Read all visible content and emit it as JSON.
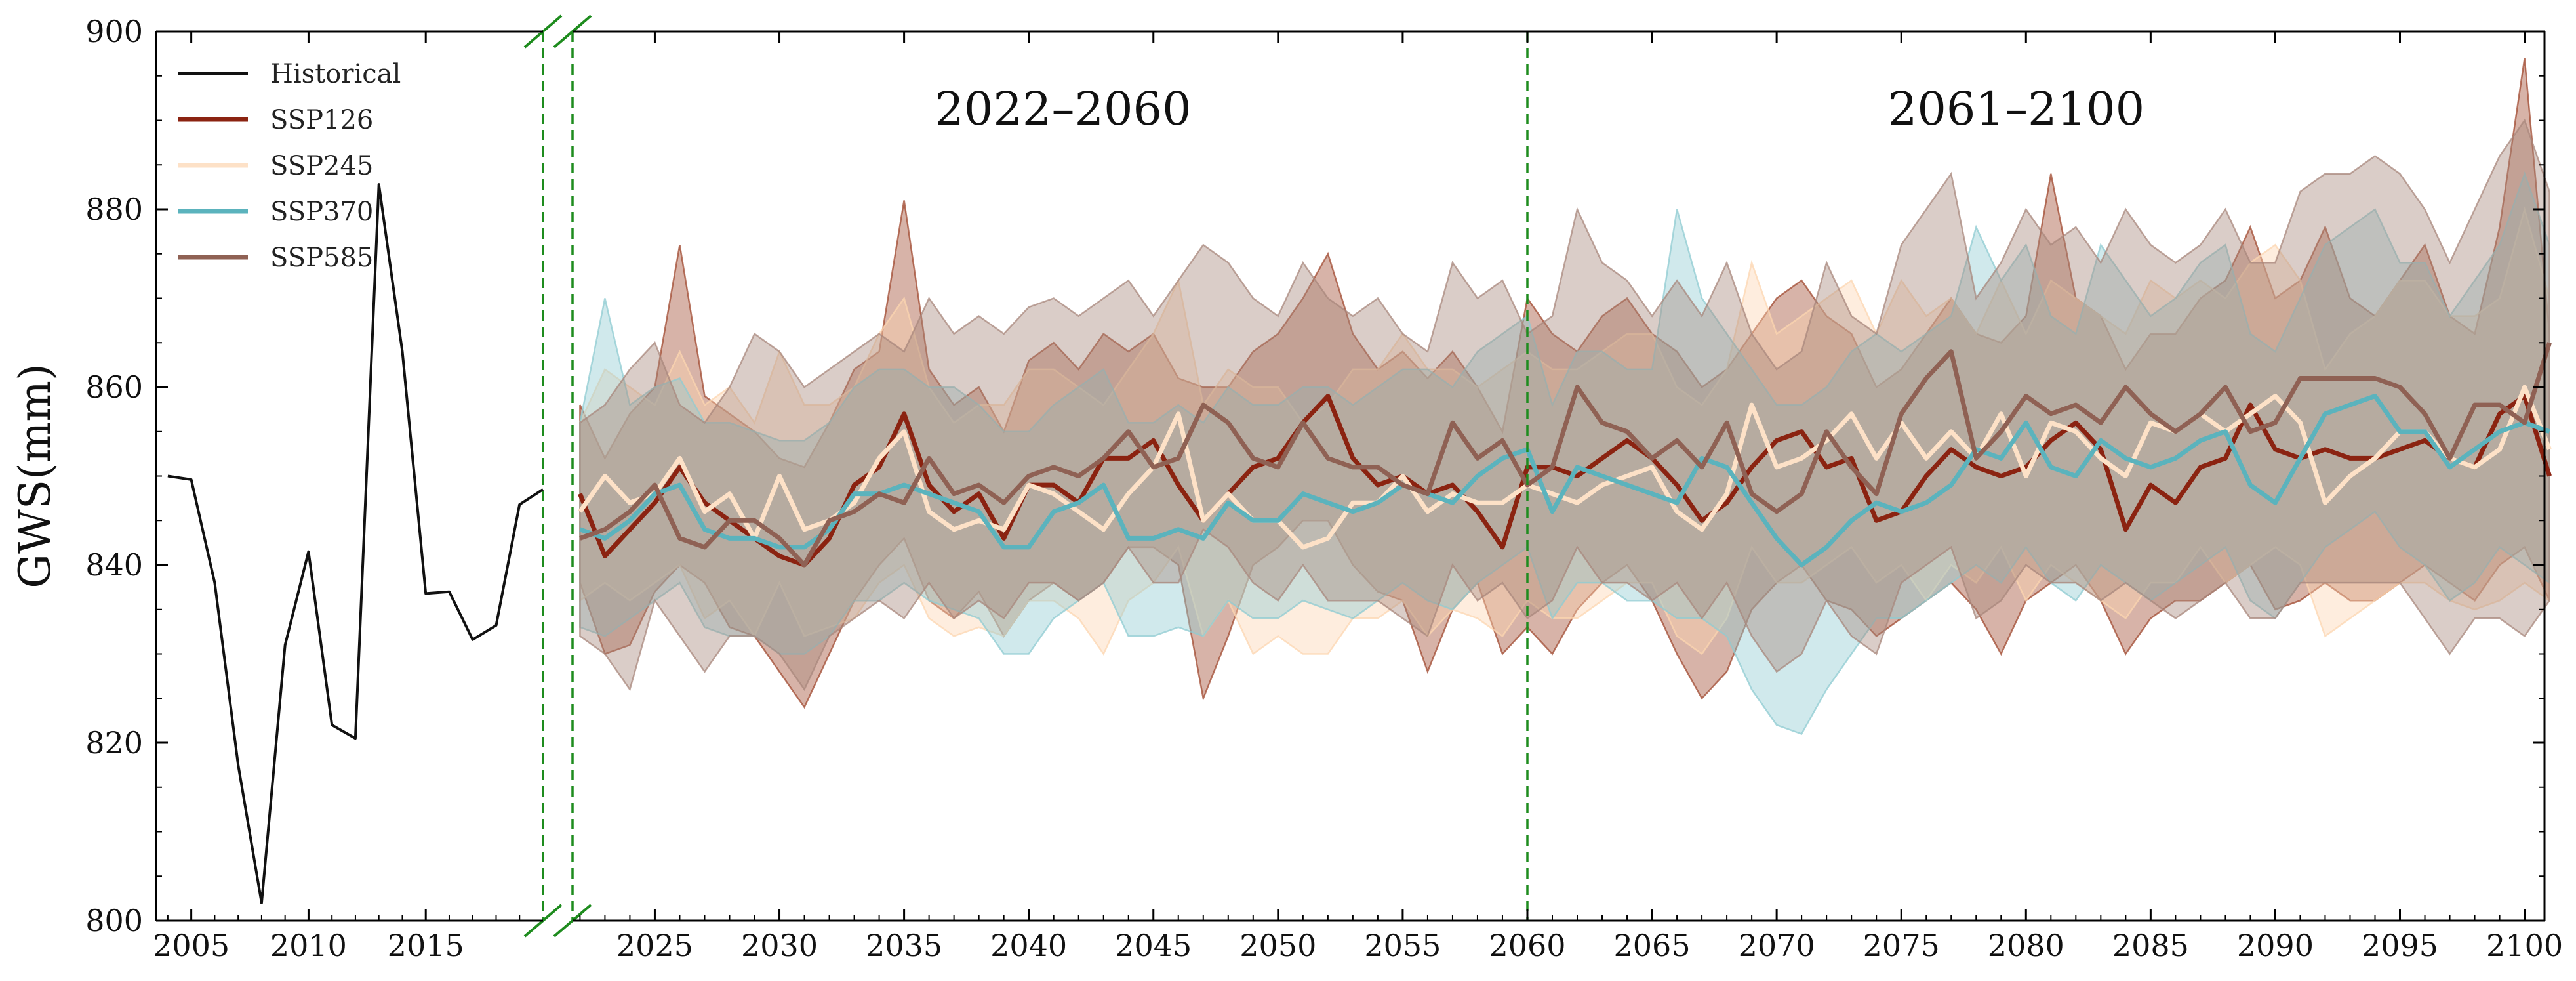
{
  "chart_data": {
    "type": "line",
    "ylabel": "GWS(mm)",
    "ylim": [
      800,
      900
    ],
    "y_ticks": [
      800,
      820,
      840,
      860,
      880,
      900
    ],
    "hist_xlim": [
      2003.5,
      2020
    ],
    "hist_ticks": [
      2005,
      2010,
      2015
    ],
    "proj_xlim": [
      2021.7,
      2100.8
    ],
    "proj_ticks": [
      2025,
      2030,
      2035,
      2040,
      2045,
      2050,
      2055,
      2060,
      2065,
      2070,
      2075,
      2080,
      2085,
      2090,
      2095,
      2100
    ],
    "period_divider_year": 2060,
    "periods": [
      "2022–2060",
      "2061–2100"
    ],
    "historical": {
      "name": "Historical",
      "color": "#111111",
      "x": [
        2004,
        2005,
        2006,
        2007,
        2008,
        2009,
        2010,
        2011,
        2012,
        2013,
        2014,
        2015,
        2016,
        2017,
        2018,
        2019,
        2020
      ],
      "values": [
        850,
        849.6,
        838,
        817.5,
        802,
        831,
        841.5,
        822,
        820.5,
        882.8,
        864,
        836.8,
        837,
        831.6,
        833.2,
        846.8,
        848.5
      ]
    },
    "series_start_year": 2022,
    "series": [
      {
        "name": "SSP126",
        "color": "#8b2311",
        "band_color": "#a04a30",
        "values": [
          848,
          841,
          844,
          847,
          851,
          847,
          845,
          843,
          841,
          840,
          843,
          849,
          851,
          857,
          849,
          846,
          848,
          843,
          849,
          849,
          847,
          852,
          852,
          854,
          849,
          845,
          848,
          851,
          852,
          856,
          859,
          852,
          849,
          850,
          848,
          849,
          846,
          842,
          851,
          851,
          850,
          852,
          854,
          852,
          849,
          845,
          847,
          851,
          854,
          855,
          851,
          852,
          845,
          846,
          850,
          853,
          851,
          850,
          851,
          854,
          856,
          853,
          844,
          849,
          847,
          851,
          852,
          858,
          853,
          852,
          853,
          852,
          852,
          853,
          854,
          852,
          851,
          857,
          859,
          850
        ],
        "lower": [
          838,
          830,
          831,
          837,
          840,
          838,
          833,
          832,
          828,
          824,
          830,
          836,
          840,
          843,
          836,
          834,
          837,
          832,
          836,
          838,
          836,
          838,
          842,
          842,
          840,
          825,
          832,
          840,
          842,
          845,
          845,
          840,
          837,
          836,
          828,
          835,
          838,
          830,
          833,
          830,
          835,
          838,
          840,
          836,
          830,
          825,
          828,
          835,
          838,
          840,
          836,
          835,
          832,
          834,
          836,
          838,
          835,
          830,
          836,
          838,
          840,
          836,
          830,
          834,
          836,
          836,
          838,
          840,
          835,
          836,
          838,
          836,
          836,
          838,
          840,
          838,
          836,
          840,
          842,
          836
        ],
        "upper": [
          858,
          852,
          857,
          860,
          876,
          859,
          857,
          855,
          852,
          851,
          856,
          862,
          864,
          881,
          862,
          858,
          860,
          855,
          863,
          865,
          862,
          866,
          864,
          866,
          861,
          860,
          860,
          864,
          866,
          870,
          875,
          866,
          862,
          864,
          861,
          864,
          860,
          855,
          870,
          866,
          864,
          868,
          870,
          866,
          864,
          860,
          862,
          866,
          870,
          872,
          868,
          866,
          860,
          862,
          866,
          870,
          866,
          865,
          868,
          884,
          870,
          868,
          862,
          866,
          866,
          870,
          872,
          878,
          870,
          872,
          878,
          870,
          868,
          872,
          876,
          868,
          866,
          878,
          897,
          866
        ]
      },
      {
        "name": "SSP245",
        "color": "#fde1c7",
        "band_color": "#fcd5b0",
        "values": [
          846,
          850,
          847,
          848,
          852,
          846,
          848,
          843,
          850,
          844,
          845,
          847,
          852,
          855,
          846,
          844,
          845,
          844,
          849,
          848,
          846,
          844,
          848,
          851,
          857,
          845,
          848,
          845,
          845,
          842,
          843,
          847,
          847,
          850,
          846,
          848,
          847,
          847,
          849,
          848,
          847,
          849,
          850,
          851,
          846,
          844,
          848,
          858,
          851,
          852,
          854,
          857,
          852,
          856,
          852,
          855,
          852,
          857,
          850,
          856,
          855,
          852,
          850,
          856,
          855,
          857,
          855,
          857,
          859,
          856,
          847,
          850,
          852,
          855,
          855,
          852,
          851,
          853,
          860,
          853
        ],
        "lower": [
          836,
          838,
          836,
          838,
          840,
          834,
          836,
          832,
          838,
          832,
          833,
          834,
          838,
          840,
          834,
          832,
          833,
          832,
          836,
          836,
          834,
          830,
          836,
          838,
          842,
          832,
          836,
          830,
          832,
          830,
          830,
          834,
          834,
          836,
          832,
          835,
          834,
          832,
          836,
          834,
          834,
          836,
          838,
          838,
          832,
          830,
          834,
          842,
          838,
          838,
          840,
          842,
          838,
          840,
          836,
          840,
          838,
          842,
          836,
          840,
          838,
          836,
          834,
          838,
          838,
          842,
          838,
          840,
          842,
          840,
          832,
          834,
          836,
          838,
          838,
          836,
          835,
          836,
          838,
          836
        ],
        "upper": [
          856,
          862,
          860,
          858,
          864,
          858,
          860,
          856,
          864,
          858,
          858,
          860,
          866,
          870,
          860,
          856,
          858,
          858,
          862,
          862,
          860,
          858,
          862,
          866,
          872,
          858,
          862,
          860,
          860,
          856,
          858,
          862,
          862,
          866,
          862,
          862,
          860,
          862,
          864,
          862,
          862,
          864,
          866,
          866,
          860,
          858,
          862,
          874,
          866,
          868,
          870,
          872,
          866,
          872,
          868,
          870,
          866,
          872,
          866,
          872,
          870,
          868,
          866,
          872,
          870,
          872,
          870,
          874,
          876,
          872,
          862,
          866,
          868,
          872,
          872,
          868,
          868,
          870,
          880,
          870
        ]
      },
      {
        "name": "SSP370",
        "color": "#5bb3bd",
        "band_color": "#8fcbd2",
        "values": [
          844,
          843,
          845,
          848,
          849,
          844,
          843,
          843,
          842,
          842,
          844,
          848,
          848,
          849,
          848,
          847,
          846,
          842,
          842,
          846,
          847,
          849,
          843,
          843,
          844,
          843,
          847,
          845,
          845,
          848,
          847,
          846,
          847,
          849,
          848,
          847,
          850,
          852,
          853,
          846,
          851,
          850,
          849,
          848,
          847,
          852,
          851,
          847,
          843,
          840,
          842,
          845,
          847,
          846,
          847,
          849,
          853,
          852,
          856,
          851,
          850,
          854,
          852,
          851,
          852,
          854,
          855,
          849,
          847,
          852,
          857,
          858,
          859,
          855,
          855,
          851,
          853,
          855,
          856,
          855
        ],
        "lower": [
          833,
          832,
          834,
          836,
          838,
          833,
          832,
          832,
          830,
          830,
          832,
          836,
          836,
          838,
          836,
          835,
          834,
          830,
          830,
          834,
          836,
          838,
          832,
          832,
          833,
          832,
          836,
          834,
          834,
          836,
          835,
          834,
          836,
          838,
          836,
          835,
          838,
          840,
          842,
          834,
          838,
          838,
          836,
          836,
          834,
          834,
          832,
          826,
          822,
          821,
          826,
          830,
          834,
          834,
          836,
          838,
          840,
          838,
          842,
          838,
          836,
          840,
          838,
          836,
          838,
          840,
          842,
          836,
          834,
          838,
          842,
          844,
          846,
          842,
          840,
          836,
          838,
          842,
          840,
          838
        ],
        "upper": [
          856,
          870,
          858,
          860,
          861,
          856,
          856,
          855,
          854,
          854,
          856,
          860,
          862,
          862,
          860,
          860,
          858,
          855,
          855,
          858,
          860,
          862,
          856,
          856,
          858,
          856,
          860,
          858,
          858,
          860,
          860,
          858,
          860,
          862,
          862,
          860,
          864,
          866,
          868,
          858,
          864,
          864,
          862,
          862,
          880,
          870,
          866,
          862,
          858,
          858,
          860,
          864,
          866,
          864,
          866,
          868,
          878,
          872,
          876,
          868,
          866,
          876,
          872,
          868,
          870,
          874,
          876,
          866,
          864,
          870,
          876,
          878,
          880,
          874,
          874,
          868,
          872,
          876,
          884,
          876
        ]
      },
      {
        "name": "SSP585",
        "color": "#8f6154",
        "band_color": "#a8877c",
        "values": [
          843,
          844,
          846,
          849,
          843,
          842,
          845,
          845,
          843,
          840,
          845,
          846,
          848,
          847,
          852,
          848,
          849,
          847,
          850,
          851,
          850,
          852,
          855,
          851,
          852,
          858,
          856,
          852,
          851,
          856,
          852,
          851,
          851,
          849,
          848,
          856,
          852,
          854,
          849,
          851,
          860,
          856,
          855,
          852,
          854,
          851,
          856,
          848,
          846,
          848,
          855,
          851,
          848,
          857,
          861,
          864,
          852,
          855,
          859,
          857,
          858,
          856,
          860,
          857,
          855,
          857,
          860,
          855,
          856,
          861,
          861,
          861,
          861,
          860,
          857,
          852,
          858,
          858,
          856,
          865
        ],
        "lower": [
          832,
          830,
          826,
          836,
          832,
          828,
          832,
          832,
          830,
          826,
          832,
          834,
          836,
          834,
          838,
          834,
          836,
          834,
          838,
          838,
          836,
          838,
          842,
          838,
          838,
          844,
          842,
          838,
          836,
          840,
          836,
          836,
          836,
          834,
          832,
          840,
          836,
          838,
          834,
          836,
          842,
          838,
          838,
          836,
          838,
          834,
          838,
          832,
          828,
          830,
          836,
          832,
          830,
          838,
          840,
          842,
          834,
          836,
          840,
          838,
          838,
          836,
          838,
          836,
          834,
          836,
          838,
          834,
          834,
          838,
          838,
          838,
          838,
          838,
          834,
          830,
          834,
          834,
          832,
          836
        ],
        "upper": [
          856,
          858,
          862,
          865,
          858,
          856,
          860,
          866,
          864,
          860,
          862,
          864,
          866,
          864,
          870,
          866,
          868,
          866,
          869,
          870,
          868,
          870,
          872,
          868,
          872,
          876,
          874,
          870,
          868,
          874,
          870,
          868,
          870,
          866,
          864,
          874,
          870,
          872,
          866,
          868,
          880,
          874,
          872,
          868,
          872,
          868,
          874,
          866,
          862,
          864,
          874,
          868,
          866,
          876,
          880,
          884,
          870,
          874,
          880,
          876,
          878,
          874,
          880,
          876,
          874,
          876,
          880,
          874,
          874,
          882,
          884,
          884,
          886,
          884,
          880,
          874,
          880,
          886,
          890,
          882
        ]
      }
    ],
    "legend": [
      "Historical",
      "SSP126",
      "SSP245",
      "SSP370",
      "SSP585"
    ]
  }
}
